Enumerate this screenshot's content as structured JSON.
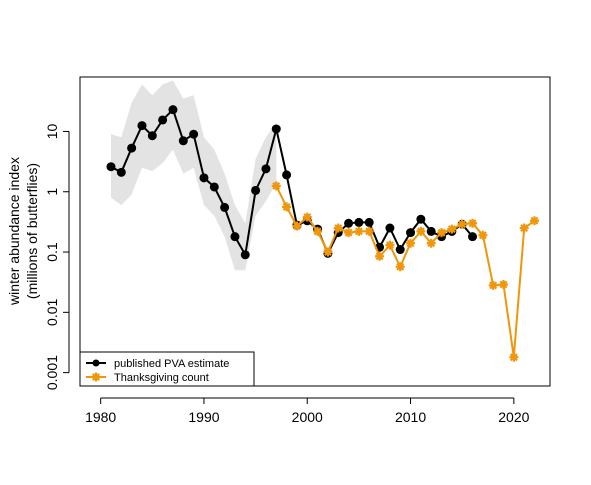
{
  "chart_data": {
    "type": "line",
    "title": "",
    "xlabel": "",
    "ylabel_line1": "winter abundance index",
    "ylabel_line2": "(millions of butterflies)",
    "y_scale": "log10",
    "xlim": [
      1978,
      2023.5
    ],
    "ylim": [
      0.0006,
      80
    ],
    "x_ticks": [
      1980,
      1990,
      2000,
      2010,
      2020
    ],
    "x_tick_labels": [
      "1980",
      "1990",
      "2000",
      "2010",
      "2020"
    ],
    "y_ticks": [
      0.001,
      0.01,
      0.1,
      1,
      10
    ],
    "y_tick_labels": [
      "0.001",
      "0.01",
      "0.1",
      "1",
      "10"
    ],
    "legend": {
      "placement": "bottom-left",
      "entries": [
        "published PVA estimate",
        "Thanksgiving count"
      ]
    },
    "colors": {
      "pva": "#000000",
      "thanksgiving": "#f0960a",
      "band": "#e3e3e3"
    },
    "confidence_band": {
      "x": [
        1981,
        1982,
        1983,
        1984,
        1985,
        1986,
        1987,
        1988,
        1989,
        1990,
        1991,
        1992,
        1993,
        1994,
        1995,
        1996,
        1997
      ],
      "lower": [
        0.8,
        0.6,
        0.9,
        2.5,
        2.2,
        3.0,
        5.0,
        2.0,
        2.5,
        0.6,
        0.4,
        0.18,
        0.05,
        0.05,
        0.4,
        0.7,
        1.4
      ],
      "upper": [
        9.0,
        8.0,
        30,
        60,
        40,
        60,
        70,
        35,
        40,
        8.0,
        5.0,
        2.0,
        0.6,
        0.3,
        3.5,
        8.0,
        14
      ]
    },
    "series": [
      {
        "name": "published PVA estimate",
        "x": [
          1981,
          1982,
          1983,
          1984,
          1985,
          1986,
          1987,
          1988,
          1989,
          1990,
          1991,
          1992,
          1993,
          1994,
          1995,
          1996,
          1997,
          1998,
          1999,
          2000,
          2001,
          2002,
          2003,
          2004,
          2005,
          2006,
          2007,
          2008,
          2009,
          2010,
          2011,
          2012,
          2013,
          2014,
          2015,
          2016
        ],
        "values": [
          2.6,
          2.1,
          5.3,
          12.5,
          8.5,
          15.5,
          23,
          7.0,
          9.0,
          1.7,
          1.2,
          0.55,
          0.18,
          0.09,
          1.05,
          2.4,
          11.0,
          1.9,
          0.28,
          0.33,
          0.24,
          0.095,
          0.21,
          0.3,
          0.31,
          0.31,
          0.12,
          0.25,
          0.11,
          0.21,
          0.35,
          0.22,
          0.18,
          0.22,
          0.29,
          0.18
        ]
      },
      {
        "name": "Thanksgiving count",
        "x": [
          1997,
          1998,
          1999,
          2000,
          2001,
          2002,
          2003,
          2004,
          2005,
          2006,
          2007,
          2008,
          2009,
          2010,
          2011,
          2012,
          2013,
          2014,
          2015,
          2016,
          2017,
          2018,
          2019,
          2020,
          2021,
          2022
        ],
        "values": [
          1.25,
          0.56,
          0.27,
          0.38,
          0.22,
          0.1,
          0.25,
          0.21,
          0.22,
          0.22,
          0.085,
          0.13,
          0.057,
          0.14,
          0.22,
          0.14,
          0.21,
          0.24,
          0.29,
          0.3,
          0.19,
          0.028,
          0.029,
          0.0018,
          0.25,
          0.33
        ]
      }
    ]
  }
}
